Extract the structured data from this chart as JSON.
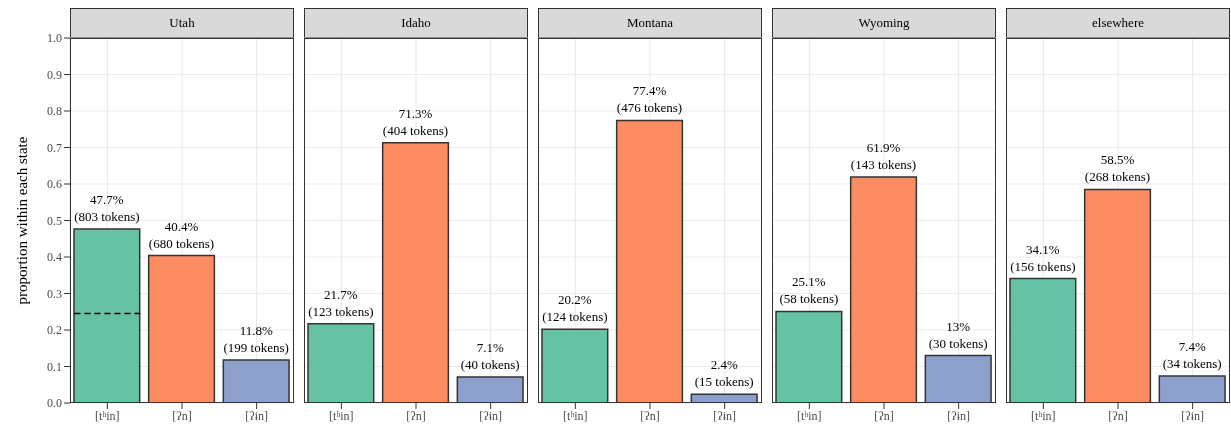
{
  "chart_data": [
    {
      "type": "bar",
      "title": "Utah",
      "ylabel": "proportion within each state",
      "categories": [
        "[tʰin]",
        "[ʔn]",
        "[ʔɨn]"
      ],
      "values": [
        0.477,
        0.404,
        0.118
      ],
      "colors": [
        "#66c2a5",
        "#fc8d62",
        "#8da0cb"
      ],
      "value_labels": [
        "47.7%\n(803 tokens)",
        "40.4%\n(680 tokens)",
        "11.8%\n(199 tokens)"
      ],
      "ylim": [
        0,
        1
      ],
      "yticks": [
        {
          "value": 0,
          "label": "0.0"
        },
        0.1,
        0.2,
        0.3,
        0.4,
        0.5,
        0.6,
        0.7,
        0.8,
        0.9,
        {
          "value": 1,
          "label": "1.0"
        }
      ],
      "grid": true,
      "ref_lines": [
        {
          "axis": "y",
          "value": 0.245,
          "label": null,
          "color": "#000000",
          "line_style": "dashed"
        }
      ]
    },
    {
      "type": "bar",
      "title": "Idaho",
      "categories": [
        "[tʰin]",
        "[ʔn]",
        "[ʔɨn]"
      ],
      "values": [
        0.217,
        0.713,
        0.071
      ],
      "colors": [
        "#66c2a5",
        "#fc8d62",
        "#8da0cb"
      ],
      "value_labels": [
        "21.7%\n(123 tokens)",
        "71.3%\n(404 tokens)",
        "7.1%\n(40 tokens)"
      ],
      "ylim": [
        0,
        1
      ],
      "yticks": [
        0.0,
        0.1,
        0.2,
        0.3,
        0.4,
        0.5,
        0.6,
        0.7,
        0.8,
        0.9,
        1.0
      ],
      "grid": true,
      "tick_labels": "x"
    },
    {
      "type": "bar",
      "title": "Montana",
      "categories": [
        "[tʰin]",
        "[ʔn]",
        "[ʔɨn]"
      ],
      "values": [
        0.202,
        0.774,
        0.024
      ],
      "colors": [
        "#66c2a5",
        "#fc8d62",
        "#8da0cb"
      ],
      "value_labels": [
        "20.2%\n(124 tokens)",
        "77.4%\n(476 tokens)",
        "2.4%\n(15 tokens)"
      ],
      "ylim": [
        0,
        1
      ],
      "yticks": [
        0.0,
        0.1,
        0.2,
        0.3,
        0.4,
        0.5,
        0.6,
        0.7,
        0.8,
        0.9,
        1.0
      ],
      "grid": true,
      "tick_labels": "x"
    },
    {
      "type": "bar",
      "title": "Wyoming",
      "categories": [
        "[tʰin]",
        "[ʔn]",
        "[ʔɨn]"
      ],
      "values": [
        0.251,
        0.619,
        0.13
      ],
      "colors": [
        "#66c2a5",
        "#fc8d62",
        "#8da0cb"
      ],
      "value_labels": [
        "25.1%\n(58 tokens)",
        "61.9%\n(143 tokens)",
        "13%\n(30 tokens)"
      ],
      "ylim": [
        0,
        1
      ],
      "yticks": [
        0.0,
        0.1,
        0.2,
        0.3,
        0.4,
        0.5,
        0.6,
        0.7,
        0.8,
        0.9,
        1.0
      ],
      "grid": true,
      "tick_labels": "x"
    },
    {
      "type": "bar",
      "title": "elsewhere",
      "categories": [
        "[tʰin]",
        "[ʔn]",
        "[ʔɨn]"
      ],
      "values": [
        0.341,
        0.585,
        0.074
      ],
      "colors": [
        "#66c2a5",
        "#fc8d62",
        "#8da0cb"
      ],
      "value_labels": [
        "34.1%\n(156 tokens)",
        "58.5%\n(268 tokens)",
        "7.4%\n(34 tokens)"
      ],
      "ylim": [
        0,
        1
      ],
      "yticks": [
        0.0,
        0.1,
        0.2,
        0.3,
        0.4,
        0.5,
        0.6,
        0.7,
        0.8,
        0.9,
        1.0
      ],
      "grid": true,
      "tick_labels": "x"
    }
  ]
}
